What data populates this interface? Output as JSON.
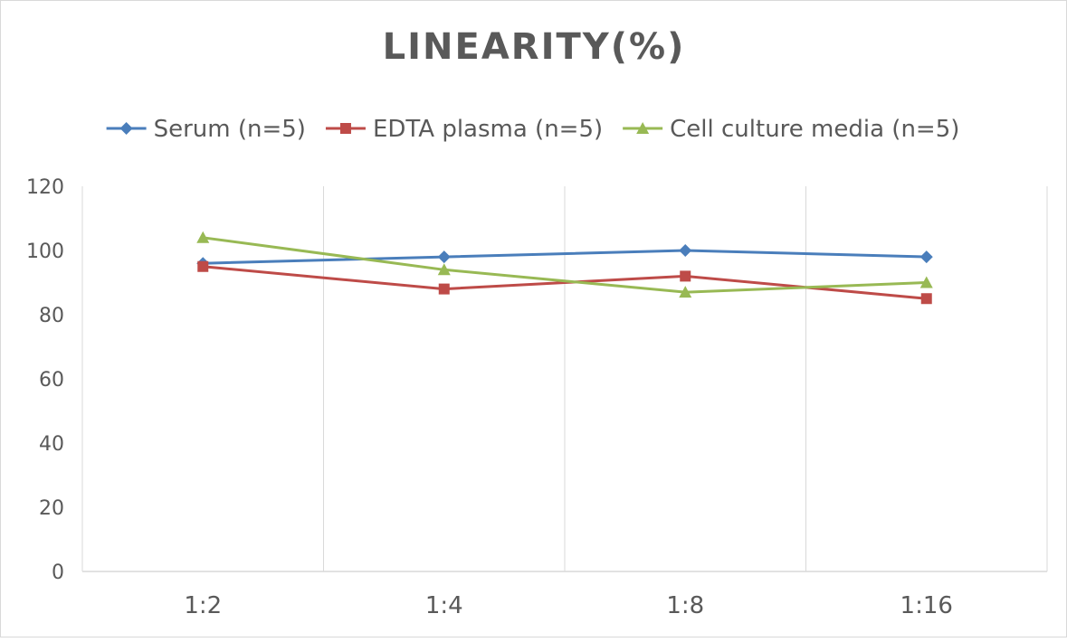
{
  "chart_data": {
    "type": "line",
    "title": "LINEARITY(%)",
    "categories": [
      "1:2",
      "1:4",
      "1:8",
      "1:16"
    ],
    "series": [
      {
        "name": "Serum (n=5)",
        "values": [
          96,
          98,
          100,
          98
        ],
        "color": "#4a7ebb",
        "marker": "diamond"
      },
      {
        "name": "EDTA plasma (n=5)",
        "values": [
          95,
          88,
          92,
          85
        ],
        "color": "#be4b48",
        "marker": "square"
      },
      {
        "name": "Cell culture media (n=5)",
        "values": [
          104,
          94,
          87,
          90
        ],
        "color": "#98b954",
        "marker": "triangle"
      }
    ],
    "ylim": [
      0,
      120
    ],
    "yticks": [
      0,
      20,
      40,
      60,
      80,
      100,
      120
    ],
    "xlabel": "",
    "ylabel": "",
    "grid": "vertical",
    "legend": "top"
  }
}
